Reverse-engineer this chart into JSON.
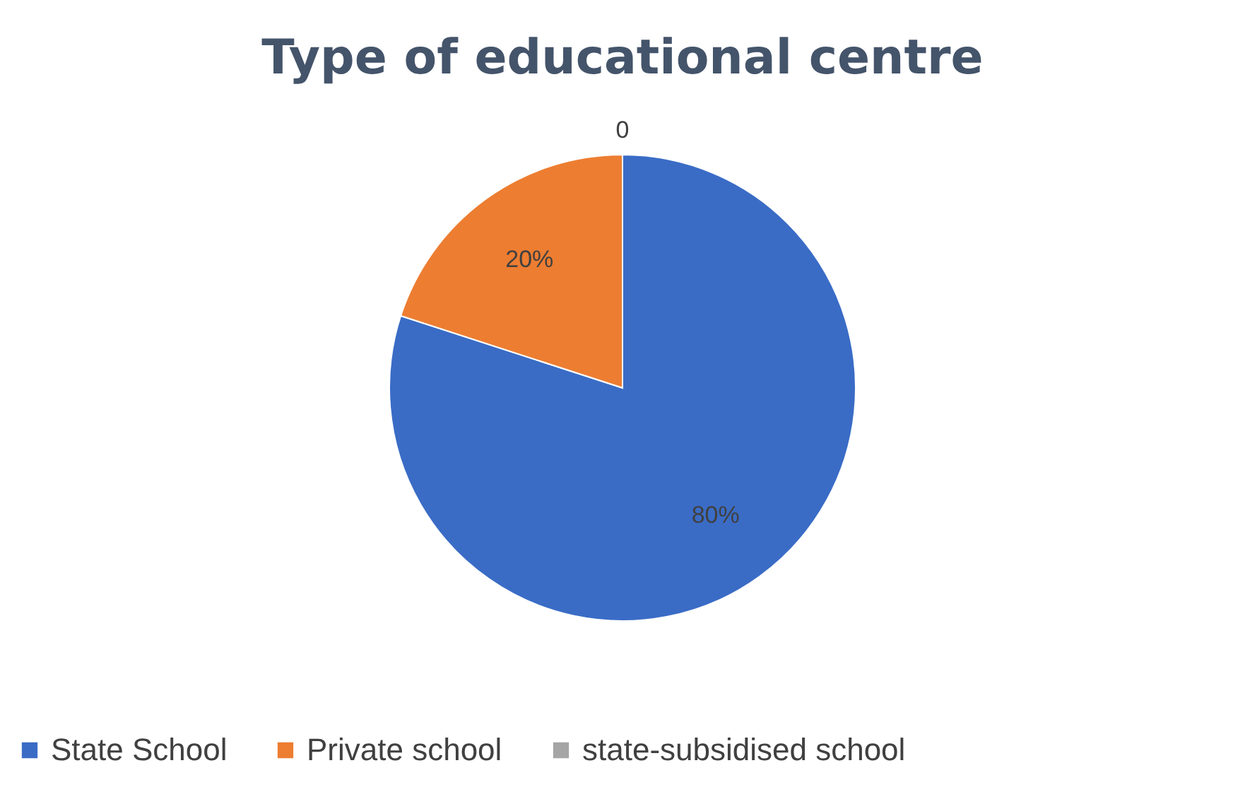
{
  "chart_data": {
    "type": "pie",
    "title": "Type of educational centre",
    "categories": [
      "State School",
      "Private school",
      "state-subsidised school"
    ],
    "values": [
      80,
      20,
      0
    ],
    "colors": [
      "#3a6cc6",
      "#ed7d31",
      "#a5a5a5"
    ],
    "value_labels": [
      "80%",
      "20%",
      "0"
    ],
    "legend": "bottom"
  }
}
